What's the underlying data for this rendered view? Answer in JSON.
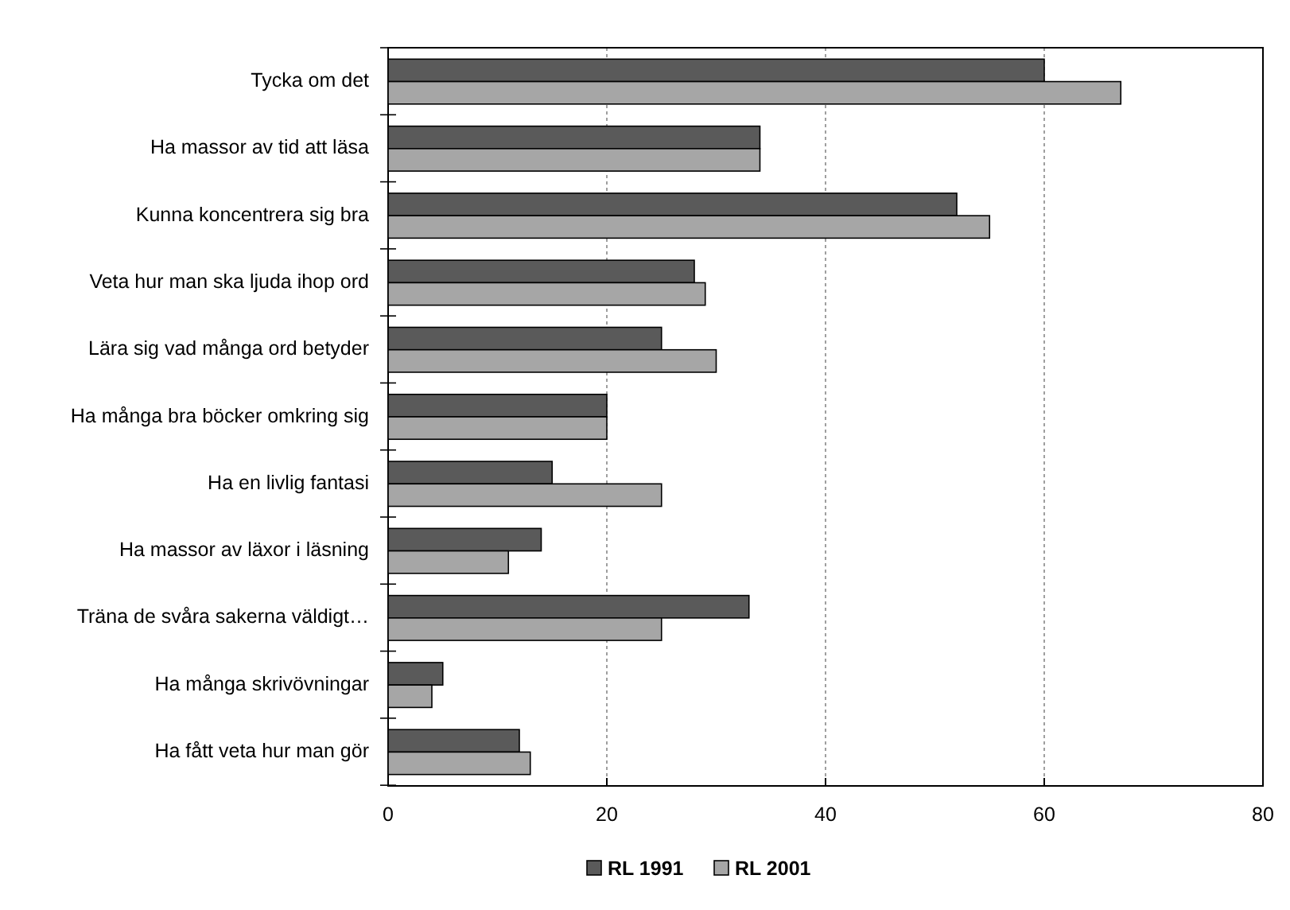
{
  "chart_data": {
    "type": "bar",
    "orientation": "horizontal",
    "categories": [
      "Tycka om det",
      "Ha massor av tid att läsa",
      "Kunna koncentrera sig bra",
      "Veta hur man ska ljuda ihop ord",
      "Lära sig vad många ord betyder",
      "Ha många bra böcker omkring sig",
      "Ha en livlig fantasi",
      "Ha massor av läxor i läsning",
      "Träna de svåra sakerna väldigt…",
      "Ha många skrivövningar",
      "Ha fått veta hur man gör"
    ],
    "series": [
      {
        "name": "RL 1991",
        "color": "#5a5a5a",
        "values": [
          60,
          34,
          52,
          28,
          25,
          20,
          15,
          14,
          33,
          5,
          12
        ]
      },
      {
        "name": "RL 2001",
        "color": "#a6a6a6",
        "values": [
          67,
          34,
          55,
          29,
          30,
          20,
          25,
          11,
          25,
          4,
          13
        ]
      }
    ],
    "xlim": [
      0,
      80
    ],
    "xticks": [
      0,
      20,
      40,
      60,
      80
    ],
    "grid": "x",
    "legend": "bottom"
  }
}
